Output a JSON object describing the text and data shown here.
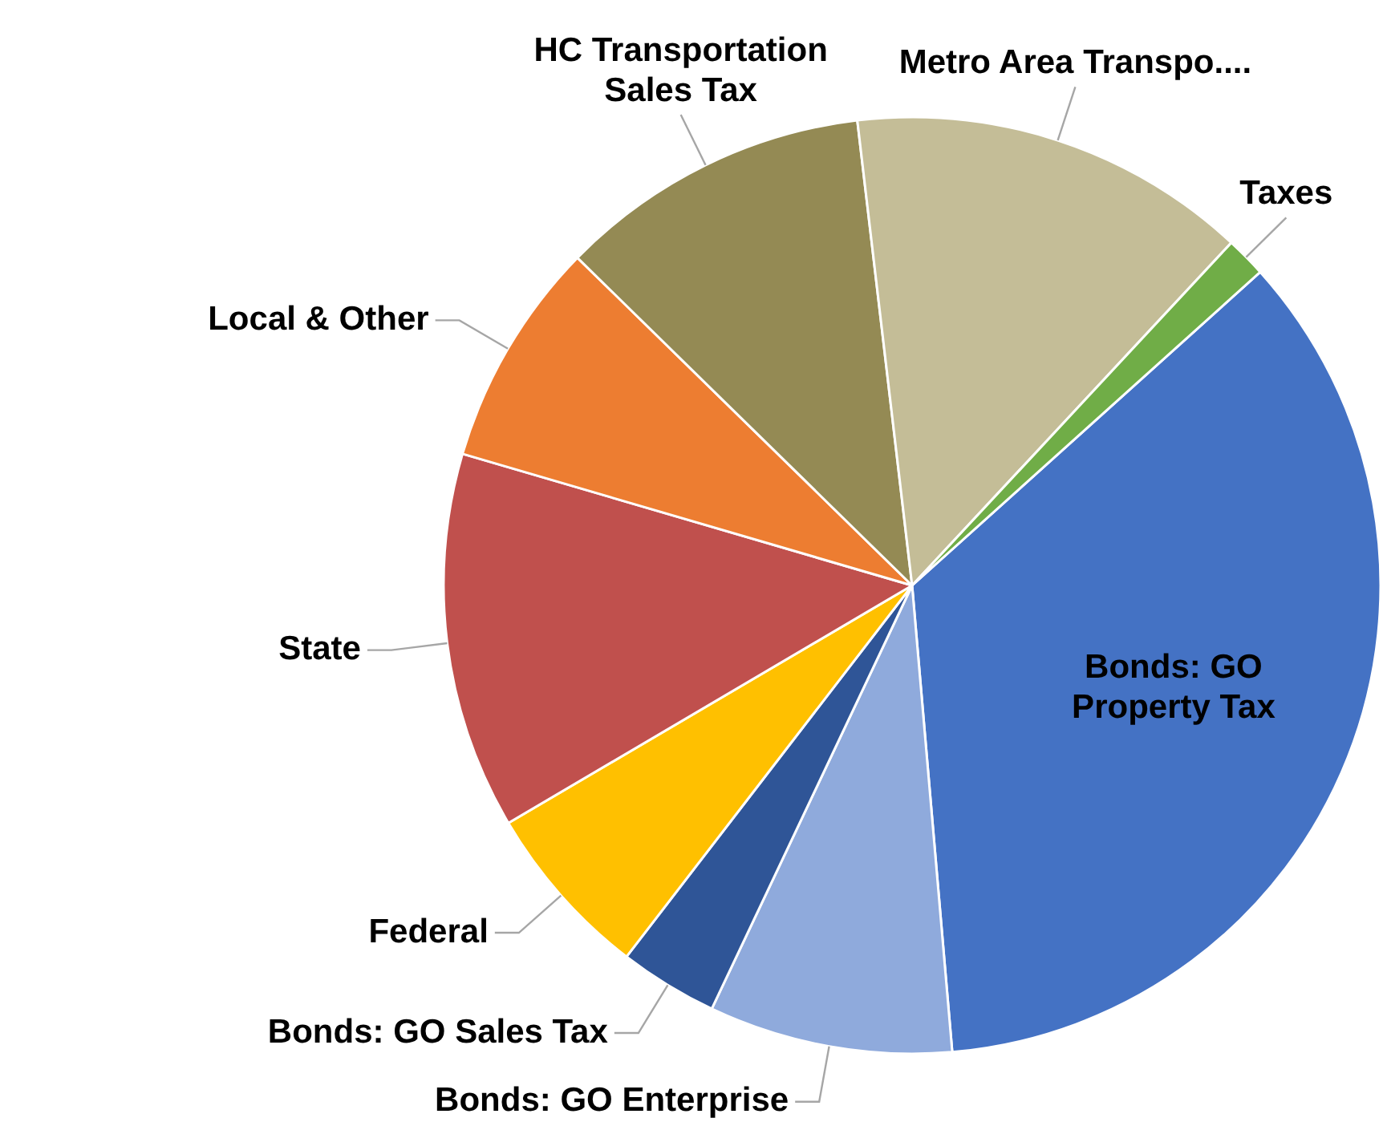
{
  "chart_data": {
    "type": "pie",
    "categories": [
      "Bonds: GO Property Tax",
      "Bonds: GO Enterprise",
      "Bonds: GO Sales Tax",
      "Federal",
      "State",
      "Local & Other",
      "HC Transportation Sales Tax",
      "Metro Area Transpo....",
      "Taxes"
    ],
    "values": [
      35.3,
      8.4,
      3.4,
      6.1,
      13.0,
      7.8,
      10.8,
      13.8,
      1.4
    ],
    "colors": [
      "#4472c4",
      "#8faadc",
      "#2f5597",
      "#ffc000",
      "#c0504d",
      "#ed7d31",
      "#948a54",
      "#c4bd97",
      "#70ad47"
    ],
    "legend": false
  }
}
